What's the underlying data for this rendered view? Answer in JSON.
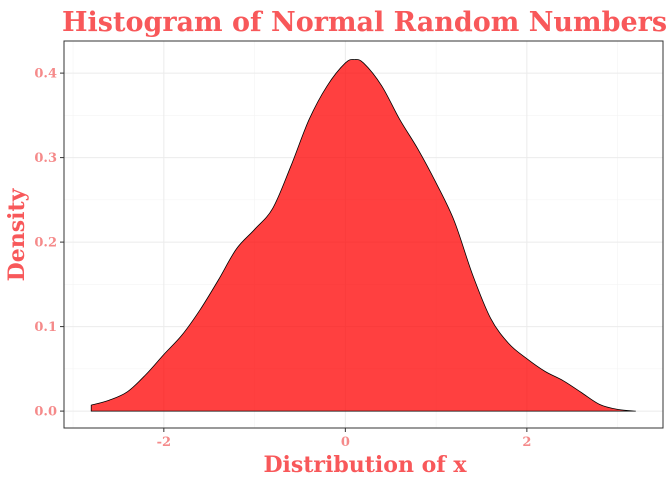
{
  "chart_data": {
    "type": "area",
    "title": "Histogram of Normal Random Numbers",
    "xlabel": "Distribution of x",
    "ylabel": "Density",
    "xlim": [
      -3.1,
      3.5
    ],
    "ylim": [
      -0.02,
      0.438
    ],
    "x_ticks": [
      -2,
      0,
      2
    ],
    "x_tick_labels": [
      "-2",
      "0",
      "2"
    ],
    "y_ticks": [
      0.0,
      0.1,
      0.2,
      0.3,
      0.4
    ],
    "y_tick_labels": [
      "0.0",
      "0.1",
      "0.2",
      "0.3",
      "0.4"
    ],
    "grid": true,
    "legend": "none",
    "fill_color": "#ff0000",
    "fill_opacity": 0.75,
    "outline_color": "#000000",
    "text_color": "#f8585a",
    "x": [
      -2.8,
      -2.6,
      -2.4,
      -2.2,
      -2.0,
      -1.8,
      -1.6,
      -1.4,
      -1.2,
      -1.0,
      -0.8,
      -0.6,
      -0.4,
      -0.2,
      0.0,
      0.1,
      0.2,
      0.4,
      0.6,
      0.8,
      1.0,
      1.2,
      1.4,
      1.6,
      1.8,
      2.0,
      2.2,
      2.4,
      2.6,
      2.8,
      3.0,
      3.2
    ],
    "y": [
      0.007,
      0.013,
      0.023,
      0.043,
      0.067,
      0.09,
      0.12,
      0.155,
      0.192,
      0.215,
      0.24,
      0.29,
      0.345,
      0.385,
      0.412,
      0.416,
      0.412,
      0.385,
      0.345,
      0.31,
      0.27,
      0.225,
      0.162,
      0.11,
      0.08,
      0.062,
      0.047,
      0.036,
      0.022,
      0.008,
      0.002,
      0.0
    ]
  }
}
